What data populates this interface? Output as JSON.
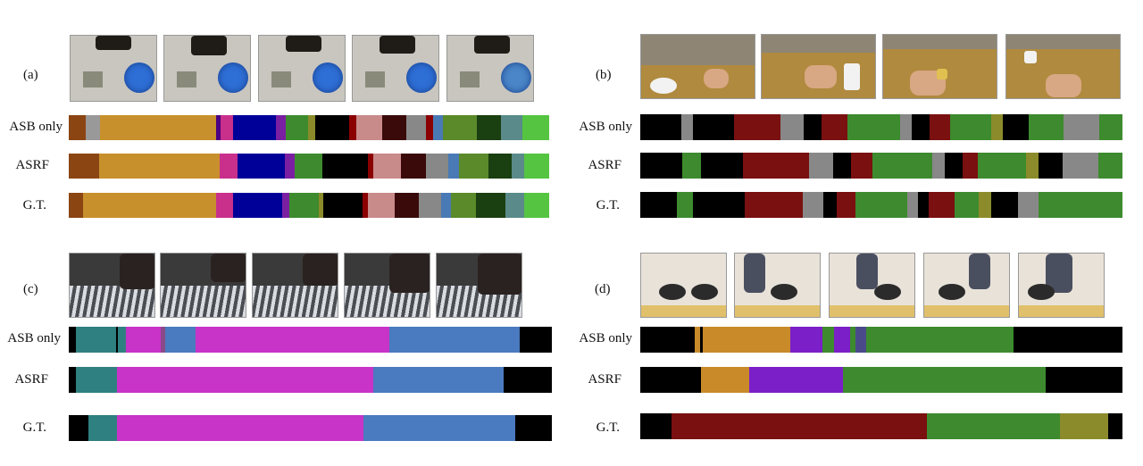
{
  "panels": [
    {
      "id": "a",
      "label": "(a)",
      "row_labels": [
        "ASB only",
        "ASRF",
        "G.T."
      ],
      "thumbnail_count": 5,
      "rows": [
        [
          [
            "#8b4513",
            3.5
          ],
          [
            "#999999",
            3
          ],
          [
            "#c8902c",
            24
          ],
          [
            "#4b0082",
            1
          ],
          [
            "#c8308c",
            2.5
          ],
          [
            "#000099",
            9
          ],
          [
            "#7b1fa2",
            2
          ],
          [
            "#3d8b2e",
            4.5
          ],
          [
            "#8b8b2b",
            1.5
          ],
          [
            "#000000",
            7
          ],
          [
            "#8b0000",
            1.5
          ],
          [
            "#c98a8a",
            5.5
          ],
          [
            "#3a0a0a",
            5
          ],
          [
            "#888888",
            4
          ],
          [
            "#8b0000",
            1.5
          ],
          [
            "#4a7ab5",
            2
          ],
          [
            "#5a8a2a",
            7
          ],
          [
            "#1a3f10",
            5
          ],
          [
            "#5a8a8a",
            4.5
          ],
          [
            "#55c441",
            5.5
          ]
        ],
        [
          [
            "#8b4513",
            6
          ],
          [
            "#c8902c",
            24
          ],
          [
            "#c8308c",
            3.5
          ],
          [
            "#000099",
            9.5
          ],
          [
            "#7b1fa2",
            2
          ],
          [
            "#3d8b2e",
            5.5
          ],
          [
            "#000000",
            9
          ],
          [
            "#8b0000",
            1
          ],
          [
            "#c98a8a",
            5.5
          ],
          [
            "#3a0a0a",
            5
          ],
          [
            "#888888",
            4.5
          ],
          [
            "#4a7ab5",
            2
          ],
          [
            "#5a8a2a",
            6
          ],
          [
            "#1a3f10",
            4.5
          ],
          [
            "#5a8a8a",
            2.5
          ],
          [
            "#55c441",
            5
          ]
        ],
        [
          [
            "#8b4513",
            3
          ],
          [
            "#c8902c",
            27
          ],
          [
            "#c8308c",
            3.5
          ],
          [
            "#000099",
            10
          ],
          [
            "#7b1fa2",
            1.5
          ],
          [
            "#3d8b2e",
            6
          ],
          [
            "#8b8b2b",
            1
          ],
          [
            "#000000",
            8
          ],
          [
            "#8b0000",
            1
          ],
          [
            "#c98a8a",
            5.5
          ],
          [
            "#3a0a0a",
            5
          ],
          [
            "#888888",
            4.5
          ],
          [
            "#4a7ab5",
            2
          ],
          [
            "#5a8a2a",
            5
          ],
          [
            "#1a3f10",
            6
          ],
          [
            "#5a8a8a",
            4
          ],
          [
            "#55c441",
            5
          ]
        ]
      ]
    },
    {
      "id": "b",
      "label": "(b)",
      "row_labels": [
        "ASB only",
        "ASRF",
        "G.T."
      ],
      "thumbnail_count": 4,
      "rows": [
        [
          [
            "#000000",
            7
          ],
          [
            "#888888",
            2
          ],
          [
            "#000000",
            7
          ],
          [
            "#7a1010",
            8
          ],
          [
            "#888888",
            4
          ],
          [
            "#000000",
            3
          ],
          [
            "#7a1010",
            4.5
          ],
          [
            "#3d8b2e",
            9
          ],
          [
            "#888888",
            2
          ],
          [
            "#000000",
            3
          ],
          [
            "#7a1010",
            3.5
          ],
          [
            "#3d8b2e",
            7
          ],
          [
            "#8b8b2b",
            2
          ],
          [
            "#000000",
            4.5
          ],
          [
            "#3d8b2e",
            6
          ],
          [
            "#888888",
            6
          ],
          [
            "#3d8b2e",
            4
          ]
        ],
        [
          [
            "#000000",
            7
          ],
          [
            "#3d8b2e",
            3
          ],
          [
            "#000000",
            7
          ],
          [
            "#7a1010",
            11
          ],
          [
            "#888888",
            4
          ],
          [
            "#000000",
            3
          ],
          [
            "#7a1010",
            3.5
          ],
          [
            "#3d8b2e",
            10
          ],
          [
            "#888888",
            2
          ],
          [
            "#000000",
            3
          ],
          [
            "#7a1010",
            2.5
          ],
          [
            "#3d8b2e",
            8
          ],
          [
            "#8b8b2b",
            2
          ],
          [
            "#000000",
            4
          ],
          [
            "#888888",
            6
          ],
          [
            "#3d8b2e",
            4
          ]
        ],
        [
          [
            "#000000",
            7
          ],
          [
            "#3d8b2e",
            3
          ],
          [
            "#000000",
            10
          ],
          [
            "#7a1010",
            11
          ],
          [
            "#888888",
            4
          ],
          [
            "#000000",
            2.5
          ],
          [
            "#7a1010",
            3.5
          ],
          [
            "#3d8b2e",
            10
          ],
          [
            "#888888",
            2
          ],
          [
            "#000000",
            2
          ],
          [
            "#7a1010",
            5
          ],
          [
            "#3d8b2e",
            4.5
          ],
          [
            "#8b8b2b",
            2.5
          ],
          [
            "#000000",
            5
          ],
          [
            "#888888",
            4
          ],
          [
            "#3d8b2e",
            16
          ]
        ]
      ]
    },
    {
      "id": "c",
      "label": "(c)",
      "row_labels": [
        "ASB only",
        "ASRF",
        "G.T."
      ],
      "thumbnail_count": 5,
      "rows": [
        [
          [
            "#000000",
            1.5
          ],
          [
            "#2f8080",
            8
          ],
          [
            "#000000",
            0.4
          ],
          [
            "#2f8080",
            1.5
          ],
          [
            "#c833c8",
            7
          ],
          [
            "#8a4a8a",
            1
          ],
          [
            "#4a7abf",
            6
          ],
          [
            "#c833c8",
            39
          ],
          [
            "#4a7abf",
            26
          ],
          [
            "#000000",
            6.5
          ]
        ],
        [
          [
            "#000000",
            1.5
          ],
          [
            "#2f8080",
            8.5
          ],
          [
            "#c833c8",
            53
          ],
          [
            "#4a7abf",
            27
          ],
          [
            "#000000",
            10
          ]
        ],
        [
          [
            "#000000",
            4
          ],
          [
            "#2f8080",
            6
          ],
          [
            "#c833c8",
            51
          ],
          [
            "#4a7abf",
            31.5
          ],
          [
            "#000000",
            7.5
          ]
        ]
      ]
    },
    {
      "id": "d",
      "label": "(d)",
      "row_labels": [
        "ASB only",
        "ASRF",
        "G.T."
      ],
      "thumbnail_count": 5,
      "rows": [
        [
          [
            "#000000",
            10
          ],
          [
            "#c98a2a",
            1
          ],
          [
            "#000000",
            0.5
          ],
          [
            "#c98a2a",
            16
          ],
          [
            "#7b1fc8",
            6
          ],
          [
            "#3d8b2e",
            2
          ],
          [
            "#7b1fc8",
            3
          ],
          [
            "#3d8b2e",
            1
          ],
          [
            "#4a4a8a",
            2
          ],
          [
            "#3d8b2e",
            27
          ],
          [
            "#000000",
            20
          ]
        ],
        [
          [
            "#000000",
            12.5
          ],
          [
            "#c98a2a",
            10
          ],
          [
            "#7b1fc8",
            19.5
          ],
          [
            "#3d8b2e",
            42
          ],
          [
            "#000000",
            16
          ]
        ],
        [
          [
            "#000000",
            6.5
          ],
          [
            "#7a1010",
            53
          ],
          [
            "#3d8b2e",
            27.5
          ],
          [
            "#8b8b2b",
            10
          ],
          [
            "#000000",
            3
          ]
        ]
      ]
    }
  ]
}
